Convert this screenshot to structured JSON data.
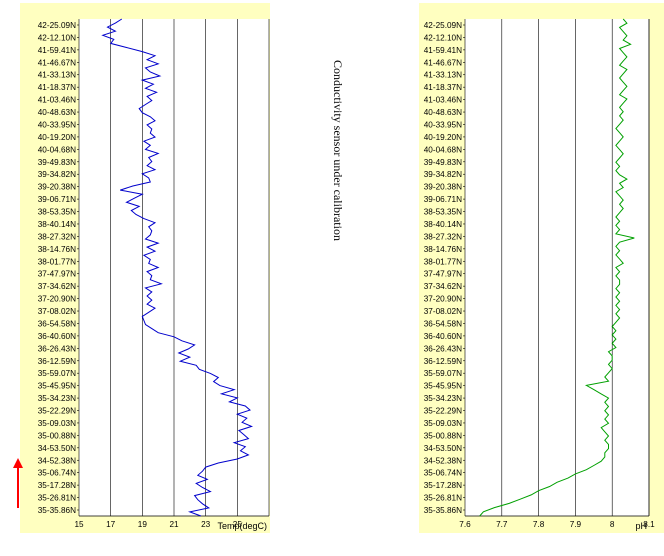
{
  "caption": "Conductivity sensor under calibration",
  "colors": {
    "panel_bg": "#ffffc0",
    "temp_line": "#0000cc",
    "ph_line": "#00a000",
    "grid": "#000000",
    "arrow": "#ff0000"
  },
  "icons": {
    "arrow": "up-arrow-icon"
  },
  "lat_labels": [
    "42-25.09N",
    "42-12.10N",
    "41-59.41N",
    "41-46.67N",
    "41-33.13N",
    "41-18.37N",
    "41-03.46N",
    "40-48.63N",
    "40-33.95N",
    "40-19.20N",
    "40-04.68N",
    "39-49.83N",
    "39-34.82N",
    "39-20.38N",
    "39-06.71N",
    "38-53.35N",
    "38-40.14N",
    "38-27.32N",
    "38-14.76N",
    "38-01.77N",
    "37-47.97N",
    "37-34.62N",
    "37-20.90N",
    "37-08.02N",
    "36-54.58N",
    "36-40.60N",
    "36-26.43N",
    "36-12.59N",
    "35-59.07N",
    "35-45.95N",
    "35-34.23N",
    "35-22.29N",
    "35-09.03N",
    "35-00.88N",
    "34-53.50N",
    "34-52.38N",
    "35-06.74N",
    "35-17.28N",
    "35-26.81N",
    "35-35.86N"
  ],
  "chart_data": [
    {
      "type": "line",
      "orientation": "vertical",
      "xlabel": "Temp(degC)",
      "ylabel": "",
      "xlim": [
        15,
        27
      ],
      "xticks": [
        15,
        17,
        19,
        21,
        23,
        25
      ],
      "grid": true,
      "series": [
        {
          "values": [
            17.7,
            17.3,
            16.8,
            17.3,
            16.5,
            17.2,
            17.0,
            18.0,
            19.0,
            19.8,
            19.3,
            20.0,
            19.2,
            19.5,
            20.1,
            19.0,
            19.7,
            19.2,
            19.9,
            19.3,
            19.6,
            19.2,
            18.8,
            19.0,
            19.5,
            19.8,
            19.3,
            19.6,
            19.5,
            19.8,
            19.1,
            19.5,
            19.2,
            20.0,
            19.4,
            19.6,
            19.3,
            19.8,
            19.0,
            19.4,
            19.5,
            18.4,
            17.6,
            19.0,
            18.5,
            18.0,
            18.8,
            18.3,
            18.6,
            19.1,
            19.8,
            19.4,
            19.6,
            19.5,
            19.2,
            20.0,
            19.3,
            19.8,
            19.1,
            19.5,
            19.4,
            20.0,
            19.3,
            19.6,
            19.5,
            20.2,
            19.2,
            19.6,
            19.3,
            19.6,
            19.3,
            19.8,
            19.4,
            19.0,
            19.1,
            19.2,
            19.6,
            20.0,
            21.0,
            21.5,
            22.3,
            21.9,
            21.3,
            22.0,
            21.4,
            22.4,
            22.6,
            23.3,
            23.8,
            23.5,
            23.9,
            24.8,
            24.0,
            25.0,
            24.5,
            25.5,
            25.8,
            25.0,
            25.6,
            25.3,
            25.9,
            25.1,
            25.4,
            25.7,
            24.8,
            25.5,
            25.2,
            25.7,
            25.0,
            23.8,
            23.0,
            22.8,
            22.5,
            23.1,
            22.4,
            22.8,
            23.3,
            22.3,
            22.5,
            22.8,
            23.2,
            22.0,
            22.7
          ]
        }
      ]
    },
    {
      "type": "line",
      "orientation": "vertical",
      "xlabel": "pH",
      "ylabel": "",
      "xlim": [
        7.6,
        8.1
      ],
      "xticks": [
        7.6,
        7.7,
        7.8,
        7.9,
        8,
        8.1
      ],
      "grid": true,
      "series": [
        {
          "values": [
            8.03,
            8.04,
            8.02,
            8.03,
            8.04,
            8.03,
            8.05,
            8.02,
            8.03,
            8.04,
            8.03,
            8.02,
            8.04,
            8.03,
            8.02,
            8.03,
            8.04,
            8.03,
            8.02,
            8.04,
            8.03,
            8.02,
            8.03,
            8.02,
            8.03,
            8.02,
            8.01,
            8.02,
            8.03,
            8.02,
            8.01,
            8.02,
            8.03,
            8.02,
            8.01,
            8.02,
            8.01,
            8.02,
            8.04,
            8.02,
            8.03,
            8.01,
            8.02,
            8.03,
            8.02,
            8.03,
            8.02,
            8.01,
            8.02,
            8.01,
            8.02,
            8.01,
            8.06,
            8.02,
            8.01,
            8.02,
            8.01,
            8.02,
            8.03,
            8.01,
            8.02,
            8.01,
            8.02,
            8.02,
            8.01,
            8.02,
            8.01,
            8.02,
            8.01,
            8.02,
            8.01,
            8.02,
            8.01,
            8.0,
            8.01,
            8.0,
            8.01,
            8.0,
            8.01,
            7.99,
            8.0,
            8.0,
            7.99,
            8.0,
            7.99,
            7.98,
            7.99,
            7.93,
            7.95,
            7.97,
            7.99,
            7.98,
            7.99,
            7.98,
            7.99,
            7.98,
            7.99,
            7.97,
            7.98,
            7.99,
            7.98,
            7.99,
            7.99,
            7.98,
            7.98,
            7.97,
            7.95,
            7.93,
            7.9,
            7.88,
            7.85,
            7.83,
            7.8,
            7.78,
            7.75,
            7.72,
            7.68,
            7.65,
            7.64
          ]
        }
      ]
    }
  ]
}
